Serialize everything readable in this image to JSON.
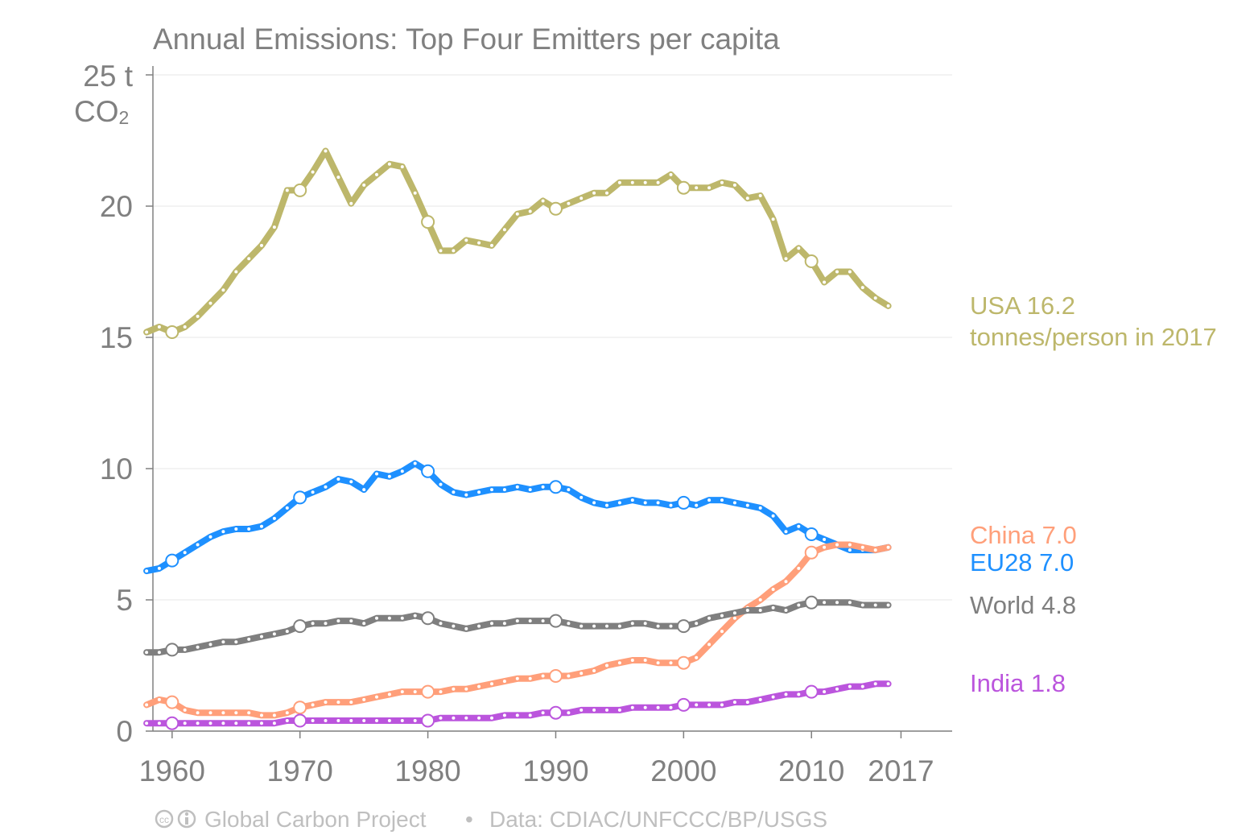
{
  "chart_data": {
    "type": "line",
    "title": "Annual Emissions: Top Four Emitters per capita",
    "ylabel_line1": "25 t",
    "ylabel_line2_main": "CO",
    "ylabel_line2_sub": "2",
    "xlim": [
      1958.5,
      2021
    ],
    "ylim": [
      0,
      25
    ],
    "y_ticks": [
      0,
      5,
      10,
      15,
      20
    ],
    "x_ticks": [
      1960,
      1970,
      1980,
      1990,
      2000,
      2010,
      2017
    ],
    "x_start": 1958,
    "marker_years": [
      1960,
      1970,
      1980,
      1990,
      2000,
      2010
    ],
    "grid": true,
    "series": [
      {
        "name": "USA",
        "label_line1": "USA 16.2",
        "label_line2": "tonnes/person in 2017",
        "color": "#bdb76b",
        "values": [
          15.2,
          15.4,
          15.2,
          15.4,
          15.8,
          16.3,
          16.8,
          17.5,
          18.0,
          18.5,
          19.2,
          20.6,
          20.6,
          21.3,
          22.1,
          21.1,
          20.1,
          20.8,
          21.2,
          21.6,
          21.5,
          20.5,
          19.4,
          18.3,
          18.3,
          18.7,
          18.6,
          18.5,
          19.1,
          19.7,
          19.8,
          20.2,
          19.9,
          20.1,
          20.3,
          20.5,
          20.5,
          20.9,
          20.9,
          20.9,
          20.9,
          21.2,
          20.7,
          20.7,
          20.7,
          20.9,
          20.8,
          20.3,
          20.4,
          19.5,
          18.0,
          18.4,
          17.9,
          17.1,
          17.5,
          17.5,
          16.9,
          16.5,
          16.2
        ]
      },
      {
        "name": "EU28",
        "label_line1": "EU28 7.0",
        "color": "#1e90ff",
        "values": [
          6.1,
          6.2,
          6.5,
          6.8,
          7.1,
          7.4,
          7.6,
          7.7,
          7.7,
          7.8,
          8.1,
          8.5,
          8.9,
          9.1,
          9.3,
          9.6,
          9.5,
          9.2,
          9.8,
          9.7,
          9.9,
          10.2,
          9.9,
          9.4,
          9.1,
          9.0,
          9.1,
          9.2,
          9.2,
          9.3,
          9.2,
          9.3,
          9.3,
          9.2,
          8.9,
          8.7,
          8.6,
          8.7,
          8.8,
          8.7,
          8.7,
          8.6,
          8.7,
          8.6,
          8.8,
          8.8,
          8.7,
          8.6,
          8.5,
          8.2,
          7.6,
          7.8,
          7.5,
          7.3,
          7.1,
          6.9,
          6.9,
          6.9,
          7.0
        ]
      },
      {
        "name": "China",
        "label_line1": "China 7.0",
        "color": "#ff9f7a",
        "values": [
          1.0,
          1.2,
          1.1,
          0.8,
          0.7,
          0.7,
          0.7,
          0.7,
          0.7,
          0.6,
          0.6,
          0.7,
          0.9,
          1.0,
          1.1,
          1.1,
          1.1,
          1.2,
          1.3,
          1.4,
          1.5,
          1.5,
          1.5,
          1.5,
          1.6,
          1.6,
          1.7,
          1.8,
          1.9,
          2.0,
          2.0,
          2.1,
          2.1,
          2.1,
          2.2,
          2.3,
          2.5,
          2.6,
          2.7,
          2.7,
          2.6,
          2.6,
          2.6,
          2.8,
          3.3,
          3.8,
          4.3,
          4.7,
          5.0,
          5.4,
          5.7,
          6.2,
          6.8,
          7.0,
          7.1,
          7.1,
          7.0,
          6.9,
          7.0
        ]
      },
      {
        "name": "World",
        "label_line1": "World 4.8",
        "color": "#7f7f7f",
        "values": [
          3.0,
          3.0,
          3.1,
          3.1,
          3.2,
          3.3,
          3.4,
          3.4,
          3.5,
          3.6,
          3.7,
          3.8,
          4.0,
          4.1,
          4.1,
          4.2,
          4.2,
          4.1,
          4.3,
          4.3,
          4.3,
          4.4,
          4.3,
          4.1,
          4.0,
          3.9,
          4.0,
          4.1,
          4.1,
          4.2,
          4.2,
          4.2,
          4.2,
          4.1,
          4.0,
          4.0,
          4.0,
          4.0,
          4.1,
          4.1,
          4.0,
          4.0,
          4.0,
          4.1,
          4.3,
          4.4,
          4.5,
          4.6,
          4.6,
          4.7,
          4.6,
          4.8,
          4.9,
          4.9,
          4.9,
          4.9,
          4.8,
          4.8,
          4.8
        ]
      },
      {
        "name": "India",
        "label_line1": "India 1.8",
        "color": "#bb55dd",
        "values": [
          0.3,
          0.3,
          0.3,
          0.3,
          0.3,
          0.3,
          0.3,
          0.3,
          0.3,
          0.3,
          0.3,
          0.4,
          0.4,
          0.4,
          0.4,
          0.4,
          0.4,
          0.4,
          0.4,
          0.4,
          0.4,
          0.4,
          0.4,
          0.5,
          0.5,
          0.5,
          0.5,
          0.5,
          0.6,
          0.6,
          0.6,
          0.7,
          0.7,
          0.7,
          0.8,
          0.8,
          0.8,
          0.8,
          0.9,
          0.9,
          0.9,
          0.9,
          1.0,
          1.0,
          1.0,
          1.0,
          1.1,
          1.1,
          1.2,
          1.3,
          1.4,
          1.4,
          1.5,
          1.5,
          1.6,
          1.7,
          1.7,
          1.8,
          1.8
        ]
      }
    ]
  },
  "footer": {
    "cc_icon": "creative-commons-by-icon",
    "cc_text": "cc",
    "by_text": "ⓘ",
    "credit": "Global Carbon Project",
    "separator": "•",
    "source": "Data: CDIAC/UNFCCC/BP/USGS"
  }
}
